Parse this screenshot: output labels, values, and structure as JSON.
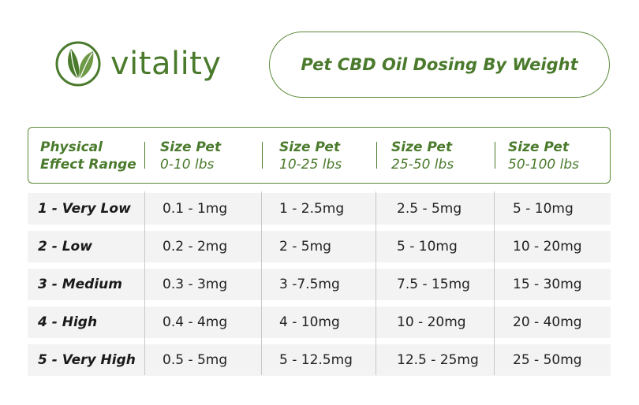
{
  "brand": {
    "name": "vitality",
    "color": "#4a7a2c"
  },
  "title": "Pet CBD Oil Dosing By Weight",
  "table": {
    "headers": [
      {
        "line1": "Physical",
        "line2": "Effect Range"
      },
      {
        "line1": "Size Pet",
        "line2": "0-10 lbs"
      },
      {
        "line1": "Size Pet",
        "line2": "10-25 lbs"
      },
      {
        "line1": "Size Pet",
        "line2": "25-50 lbs"
      },
      {
        "line1": "Size Pet",
        "line2": "50-100 lbs"
      }
    ],
    "rows": [
      {
        "label": "1 - Very Low",
        "values": [
          "0.1 - 1mg",
          "1 - 2.5mg",
          "2.5 - 5mg",
          "5 - 10mg"
        ]
      },
      {
        "label": "2 - Low",
        "values": [
          "0.2 - 2mg",
          "2 - 5mg",
          "5 - 10mg",
          "10 - 20mg"
        ]
      },
      {
        "label": "3 - Medium",
        "values": [
          "0.3 - 3mg",
          "3 -7.5mg",
          "7.5 - 15mg",
          "15 - 30mg"
        ]
      },
      {
        "label": "4 - High",
        "values": [
          "0.4 - 4mg",
          "4 - 10mg",
          "10 - 20mg",
          "20 - 40mg"
        ]
      },
      {
        "label": "5 - Very High",
        "values": [
          "0.5 - 5mg",
          "5 - 12.5mg",
          "12.5 - 25mg",
          "25 - 50mg"
        ]
      }
    ]
  }
}
